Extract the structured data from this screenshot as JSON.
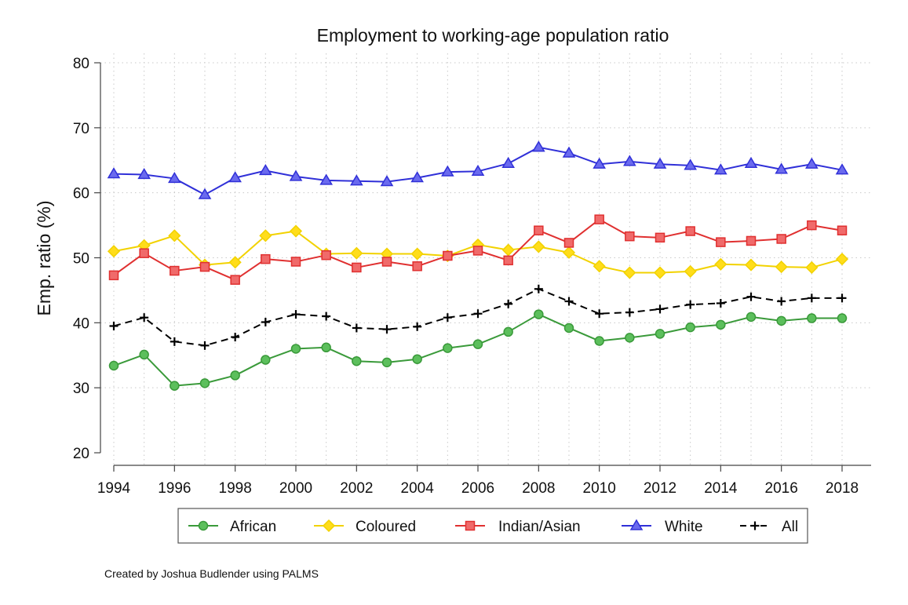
{
  "chart_data": {
    "type": "line",
    "title": "Employment to working-age population ratio",
    "xlabel": "",
    "ylabel": "Emp. ratio (%)",
    "xlim": [
      1994,
      2018
    ],
    "ylim": [
      20,
      80
    ],
    "yticks": [
      20,
      30,
      40,
      50,
      60,
      70,
      80
    ],
    "xticks": [
      1994,
      1996,
      1998,
      2000,
      2002,
      2004,
      2006,
      2008,
      2010,
      2012,
      2014,
      2016,
      2018
    ],
    "grid": true,
    "legend_position": "bottom",
    "x": [
      1994,
      1995,
      1996,
      1997,
      1998,
      1999,
      2000,
      2001,
      2002,
      2003,
      2004,
      2005,
      2006,
      2007,
      2008,
      2009,
      2010,
      2011,
      2012,
      2013,
      2014,
      2015,
      2016,
      2017,
      2018
    ],
    "series": [
      {
        "name": "African",
        "color": "#3a9a3a",
        "fill": "#5cbf5c",
        "marker": "circle",
        "dash": false,
        "values": [
          33.4,
          35.1,
          30.3,
          30.7,
          31.9,
          34.3,
          36.0,
          36.2,
          34.1,
          33.9,
          34.4,
          36.1,
          36.7,
          38.6,
          41.3,
          39.2,
          37.2,
          37.7,
          38.3,
          39.3,
          39.7,
          40.9,
          40.3,
          40.7,
          40.7
        ]
      },
      {
        "name": "Coloured",
        "color": "#f2d200",
        "fill": "#ffdd1a",
        "marker": "diamond",
        "dash": false,
        "values": [
          51.0,
          51.9,
          53.4,
          48.9,
          49.3,
          53.4,
          54.1,
          50.6,
          50.7,
          50.6,
          50.6,
          50.3,
          52.0,
          51.2,
          51.7,
          50.8,
          48.7,
          47.7,
          47.7,
          47.9,
          49.0,
          48.9,
          48.6,
          48.5,
          49.8
        ]
      },
      {
        "name": "Indian/Asian",
        "color": "#e03030",
        "fill": "#f06a6a",
        "marker": "square",
        "dash": false,
        "values": [
          47.3,
          50.7,
          48.0,
          48.6,
          46.6,
          49.8,
          49.4,
          50.4,
          48.5,
          49.4,
          48.7,
          50.3,
          51.1,
          49.6,
          54.2,
          52.3,
          55.9,
          53.3,
          53.1,
          54.1,
          52.4,
          52.6,
          52.9,
          55.0,
          54.2
        ]
      },
      {
        "name": "White",
        "color": "#3030d8",
        "fill": "#6a6aee",
        "marker": "triangle",
        "dash": false,
        "values": [
          62.9,
          62.8,
          62.2,
          59.7,
          62.3,
          63.4,
          62.5,
          61.9,
          61.8,
          61.7,
          62.3,
          63.2,
          63.3,
          64.5,
          67.0,
          66.1,
          64.4,
          64.8,
          64.4,
          64.2,
          63.5,
          64.5,
          63.6,
          64.4,
          63.5
        ]
      },
      {
        "name": "All",
        "color": "#000000",
        "fill": "#000000",
        "marker": "plus",
        "dash": true,
        "values": [
          39.5,
          40.8,
          37.1,
          36.5,
          37.8,
          40.1,
          41.3,
          41.0,
          39.2,
          39.0,
          39.4,
          40.8,
          41.4,
          42.9,
          45.2,
          43.3,
          41.4,
          41.6,
          42.1,
          42.8,
          43.0,
          44.0,
          43.3,
          43.8,
          43.8
        ]
      }
    ]
  },
  "caption": "Created by Joshua Budlender using PALMS"
}
